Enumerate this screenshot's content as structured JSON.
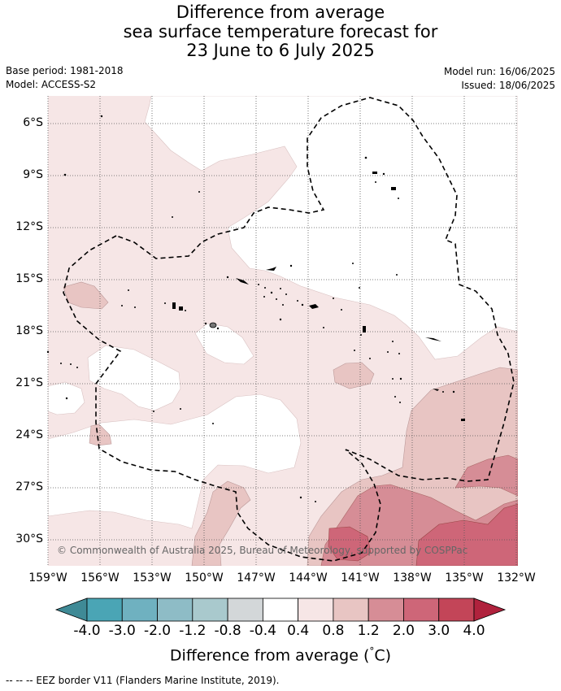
{
  "title": {
    "line1": "Difference from average",
    "line2": "sea surface temperature forecast for",
    "line3": "23 June to 6 July 2025"
  },
  "meta": {
    "base_period": "Base period: 1981-2018",
    "model": "Model: ACCESS-S2",
    "model_run": "Model run: 16/06/2025",
    "issued": "Issued: 18/06/2025"
  },
  "map": {
    "lon_range": [
      -159,
      -132
    ],
    "lat_range": [
      -31.5,
      -4.5
    ],
    "x_ticks": [
      "159°W",
      "156°W",
      "153°W",
      "150°W",
      "147°W",
      "144°W",
      "141°W",
      "138°W",
      "135°W",
      "132°W"
    ],
    "y_ticks": [
      "6°S",
      "9°S",
      "12°S",
      "15°S",
      "18°S",
      "21°S",
      "24°S",
      "27°S",
      "30°S"
    ],
    "copyright": "© Commonwealth of Australia 2025, Bureau of Meteorology, supported by COSPPac"
  },
  "legend": {
    "labels": [
      "-4.0",
      "-3.0",
      "-2.0",
      "-1.2",
      "-0.8",
      "-0.4",
      "0.4",
      "0.8",
      "1.2",
      "2.0",
      "3.0",
      "4.0"
    ],
    "colors": [
      "#3f8a96",
      "#4aa5b5",
      "#6fb1c0",
      "#8ebcc6",
      "#a9c9cd",
      "#d3d7d9",
      "#ffffff",
      "#f6e6e6",
      "#e8c5c3",
      "#d68d96",
      "#ce6678",
      "#c34558",
      "#b0223d"
    ],
    "title": "Difference from average (°C)",
    "title_main": "Difference from average (",
    "title_unit": "°C",
    "title_end": ")"
  },
  "footnote": "--  --  -- EEZ border V11 (Flanders Marine Institute, 2019)."
}
